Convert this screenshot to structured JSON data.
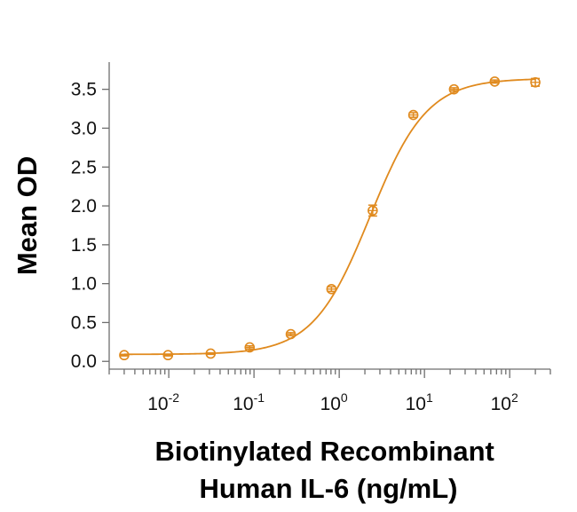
{
  "chart_data": {
    "type": "scatter",
    "title": "",
    "xlabel": [
      "Biotinylated Recombinant",
      "Human IL-6 (ng/mL)"
    ],
    "ylabel": "Mean OD",
    "x_scale": "log",
    "xlim": [
      0.002,
      300
    ],
    "ylim": [
      -0.1,
      3.85
    ],
    "x_ticks": [
      {
        "base": "10",
        "exp": "-2",
        "value": 0.01
      },
      {
        "base": "10",
        "exp": "-1",
        "value": 0.1
      },
      {
        "base": "10",
        "exp": "0",
        "value": 1
      },
      {
        "base": "10",
        "exp": "1",
        "value": 10
      },
      {
        "base": "10",
        "exp": "2",
        "value": 100
      }
    ],
    "y_ticks": [
      "0.0",
      "0.5",
      "1.0",
      "1.5",
      "2.0",
      "2.5",
      "3.0",
      "3.5"
    ],
    "y_tick_values": [
      0,
      0.5,
      1.0,
      1.5,
      2.0,
      2.5,
      3.0,
      3.5
    ],
    "grid": false,
    "color": "#e08a1e",
    "series": [
      {
        "x": [
          0.003,
          0.0098,
          0.031,
          0.089,
          0.27,
          0.81,
          2.47,
          7.4,
          22.2,
          66.7,
          200
        ],
        "y": [
          0.08,
          0.08,
          0.1,
          0.18,
          0.35,
          0.93,
          1.94,
          3.17,
          3.5,
          3.6,
          3.59
        ],
        "error": [
          0.01,
          0.01,
          0.01,
          0.02,
          0.02,
          0.03,
          0.07,
          0.03,
          0.02,
          0.02,
          0.05
        ]
      }
    ],
    "fit": {
      "model": "4PL",
      "bottom": 0.09,
      "top": 3.64,
      "ec50": 2.3,
      "hill": 1.3
    }
  }
}
